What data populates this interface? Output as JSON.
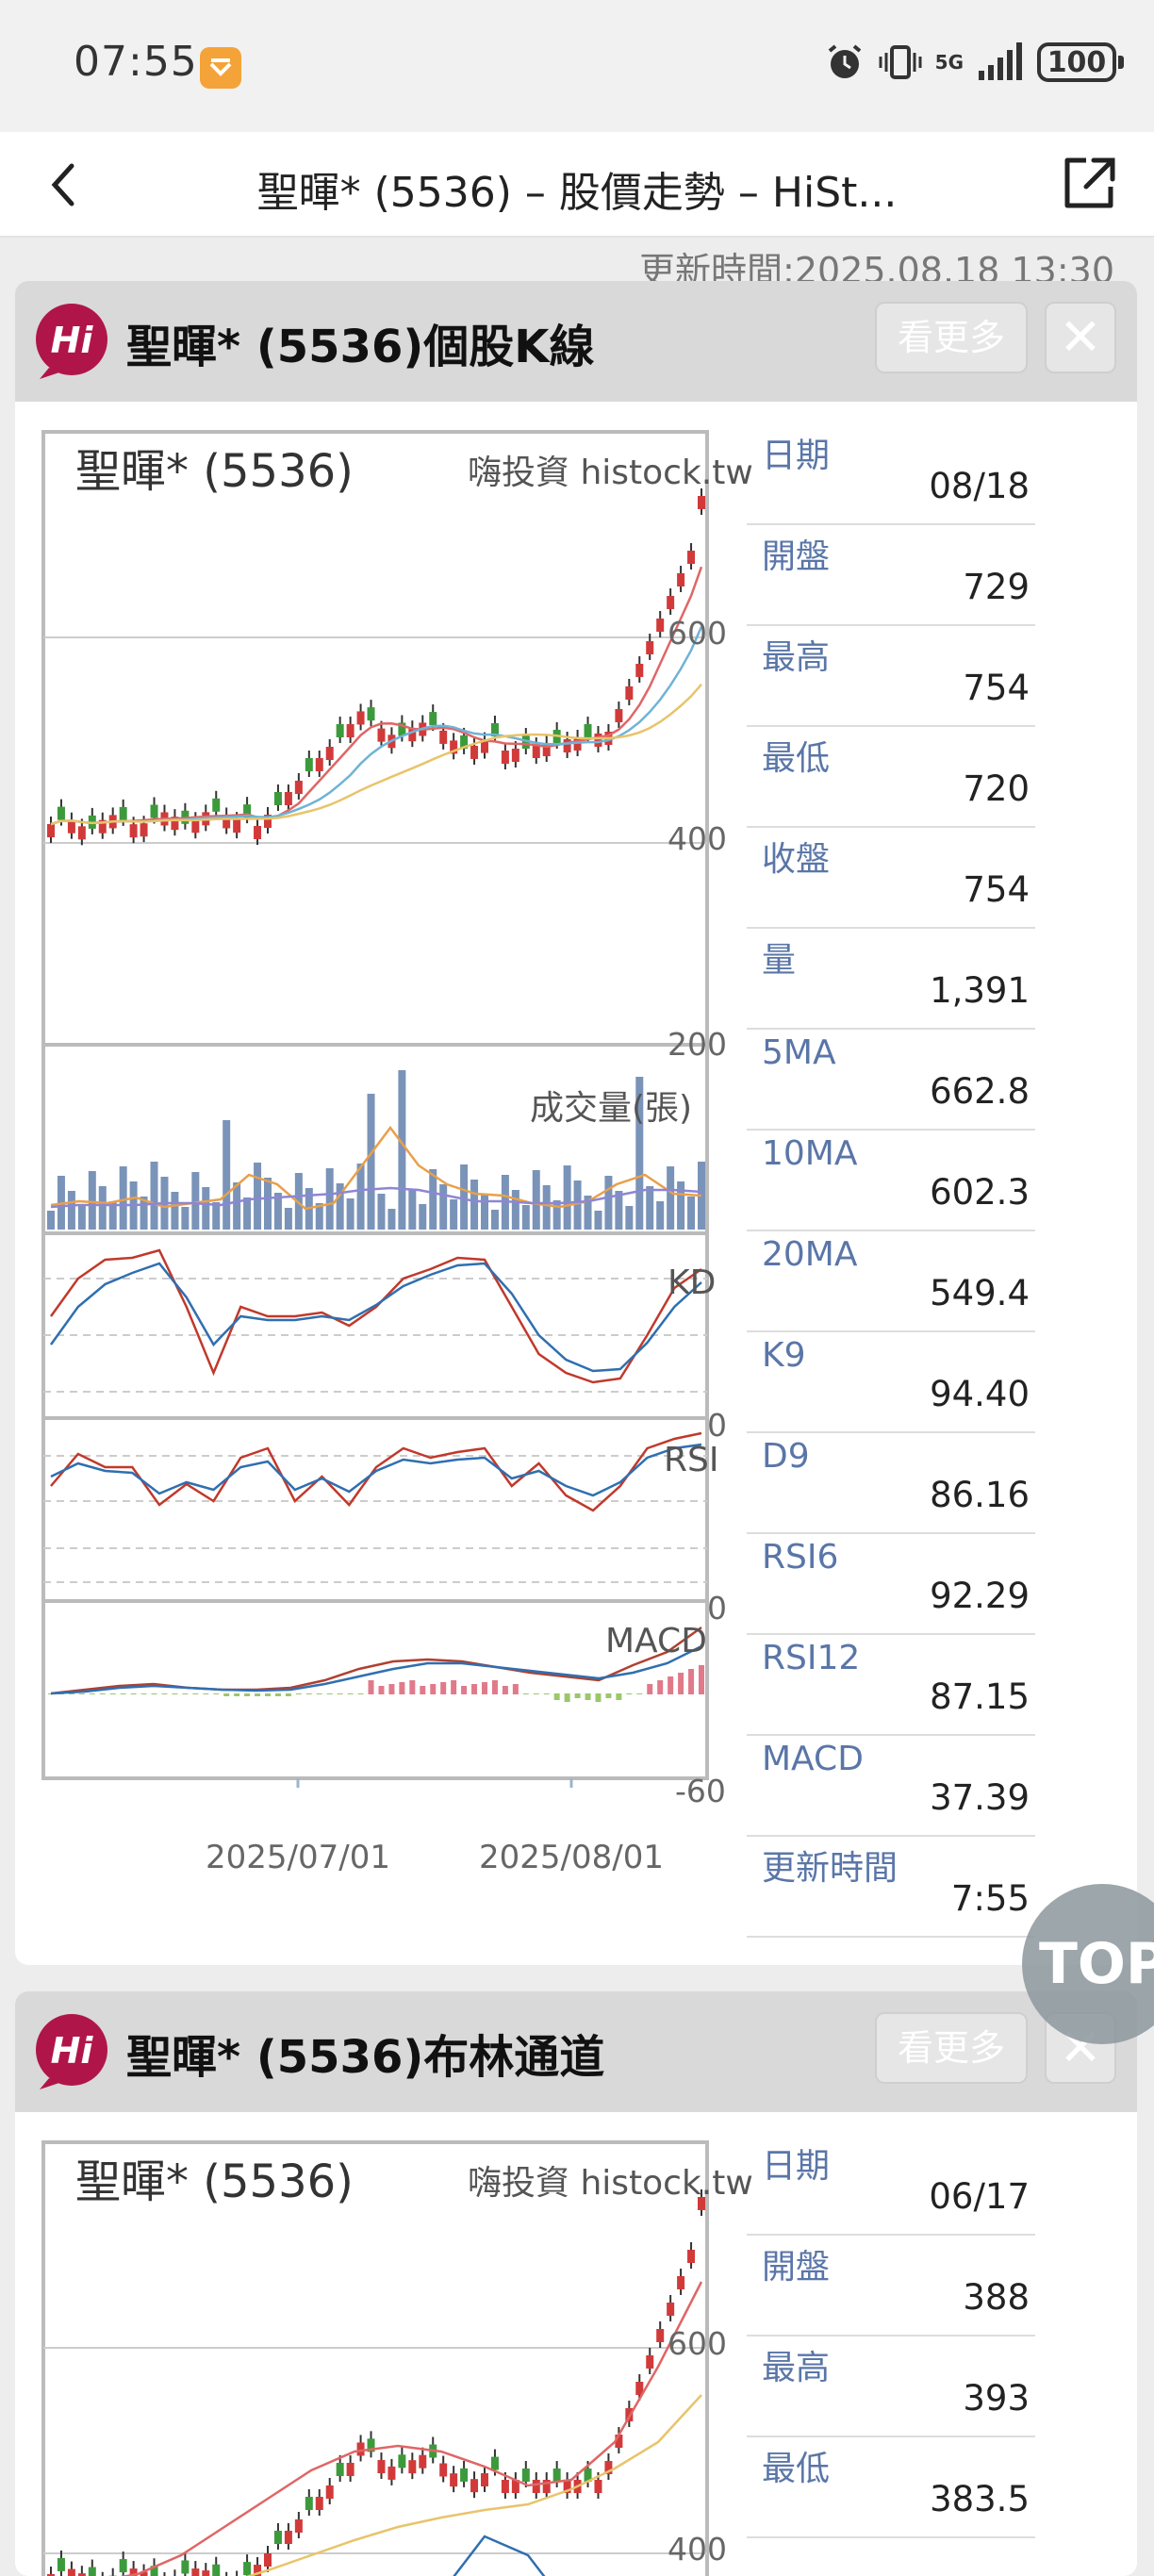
{
  "status": {
    "time": "07:55",
    "network": "5G",
    "battery": "100"
  },
  "topbar": {
    "title": "聖暉* (5536) – 股價走勢 – HiSt..."
  },
  "update_text": "更新時間:2025.08.18 13:30",
  "card1": {
    "title": "聖暉* (5536)個股K線",
    "more": "看更多",
    "close": "✕",
    "chart_name": "聖暉* (5536)",
    "brand": "嗨投資 histock.tw",
    "price_axis": [
      "600",
      "400",
      "200"
    ],
    "vol_label": "成交量(張)",
    "kd_label": "KD",
    "kd_zero": "0",
    "rsi_label": "RSI",
    "rsi_zero": "0",
    "macd_label": "MACD",
    "macd_min": "-60",
    "dates": [
      "2025/07/01",
      "2025/08/01"
    ],
    "info": [
      {
        "k": "日期",
        "v": "08/18"
      },
      {
        "k": "開盤",
        "v": "729"
      },
      {
        "k": "最高",
        "v": "754"
      },
      {
        "k": "最低",
        "v": "720"
      },
      {
        "k": "收盤",
        "v": "754"
      },
      {
        "k": "量",
        "v": "1,391"
      },
      {
        "k": "5MA",
        "v": "662.8"
      },
      {
        "k": "10MA",
        "v": "602.3"
      },
      {
        "k": "20MA",
        "v": "549.4"
      },
      {
        "k": "K9",
        "v": "94.40"
      },
      {
        "k": "D9",
        "v": "86.16"
      },
      {
        "k": "RSI6",
        "v": "92.29"
      },
      {
        "k": "RSI12",
        "v": "87.15"
      },
      {
        "k": "MACD",
        "v": "37.39"
      },
      {
        "k": "更新時間",
        "v": "7:55"
      }
    ]
  },
  "card2": {
    "title": "聖暉* (5536)布林通道",
    "more": "看更多",
    "close": "✕",
    "chart_name": "聖暉* (5536)",
    "brand": "嗨投資 histock.tw",
    "price_axis": [
      "600",
      "400"
    ],
    "info": [
      {
        "k": "日期",
        "v": "06/17"
      },
      {
        "k": "開盤",
        "v": "388"
      },
      {
        "k": "最高",
        "v": "393"
      },
      {
        "k": "最低",
        "v": "383.5"
      }
    ]
  },
  "top_button": "TOP",
  "colors": {
    "up": "#d23a3a",
    "down": "#3c9a3c",
    "ma5": "#e06666",
    "ma10": "#6fb3d6",
    "ma20": "#e8c46a",
    "vol": "#7a93b8",
    "kline_k": "#c0392b",
    "kline_d": "#2f6fb0",
    "hi_logo": "#b0154a"
  }
}
